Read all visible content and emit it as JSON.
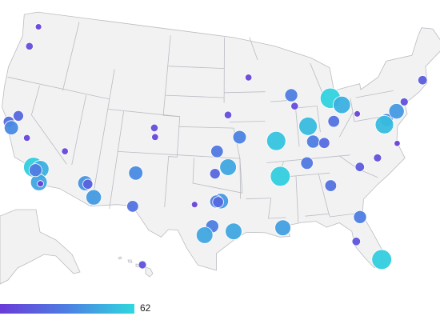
{
  "chart_data": {
    "type": "bubble_map",
    "colors": [
      "#6a3bd8",
      "#4d7fe2",
      "#2ed8de"
    ],
    "color_max": 62,
    "lon": [
      -122.3,
      -122.7,
      -121.5,
      -122.4,
      -121.9,
      -119.8,
      -118.2,
      -117.4,
      -117.2,
      -117.9,
      -117.0,
      -115.1,
      -112.1,
      -111.8,
      -110.9,
      -105.0,
      -104.8,
      -106.6,
      -106.5,
      -93.3,
      -96.0,
      -94.6,
      -97.3,
      -95.99,
      -97.5,
      -96.8,
      -97.3,
      -97.1,
      -97.7,
      -99.7,
      -95.4,
      -98.5,
      -90.0,
      -90.2,
      -87.9,
      -87.6,
      -86.2,
      -83.0,
      -81.7,
      -83.0,
      -85.8,
      -84.5,
      -86.8,
      -84.4,
      -80.8,
      -78.6,
      -80.0,
      -76.6,
      -77.0,
      -75.2,
      -74.0,
      -71.06,
      -76.0,
      -90.1,
      -81.7,
      -82.5,
      -80.2,
      -157.86
    ],
    "lat": [
      47.6,
      45.5,
      38.6,
      37.8,
      37.3,
      36.7,
      34.05,
      34.0,
      32.7,
      33.8,
      32.6,
      36.2,
      33.45,
      33.4,
      32.2,
      39.7,
      38.8,
      35.1,
      31.8,
      44.98,
      41.3,
      39.1,
      37.7,
      36.15,
      35.5,
      32.8,
      32.75,
      32.7,
      30.3,
      32.4,
      29.8,
      29.4,
      35.1,
      38.6,
      43.0,
      41.9,
      39.8,
      42.3,
      41.5,
      40.0,
      38.25,
      38.0,
      36.2,
      33.75,
      35.2,
      35.8,
      40.4,
      39.3,
      38.9,
      39.95,
      40.7,
      42.36,
      36.85,
      30.0,
      30.3,
      27.95,
      25.8,
      21.3
    ],
    "values": [
      3,
      8,
      20,
      22,
      35,
      5,
      58,
      48,
      45,
      30,
      3,
      5,
      38,
      18,
      40,
      8,
      5,
      35,
      25,
      5,
      8,
      32,
      28,
      45,
      20,
      40,
      30,
      22,
      30,
      3,
      45,
      45,
      58,
      55,
      30,
      8,
      52,
      60,
      48,
      25,
      30,
      22,
      28,
      25,
      15,
      10,
      3,
      30,
      52,
      40,
      10,
      15,
      2,
      42,
      30,
      12,
      58,
      10
    ]
  }
}
